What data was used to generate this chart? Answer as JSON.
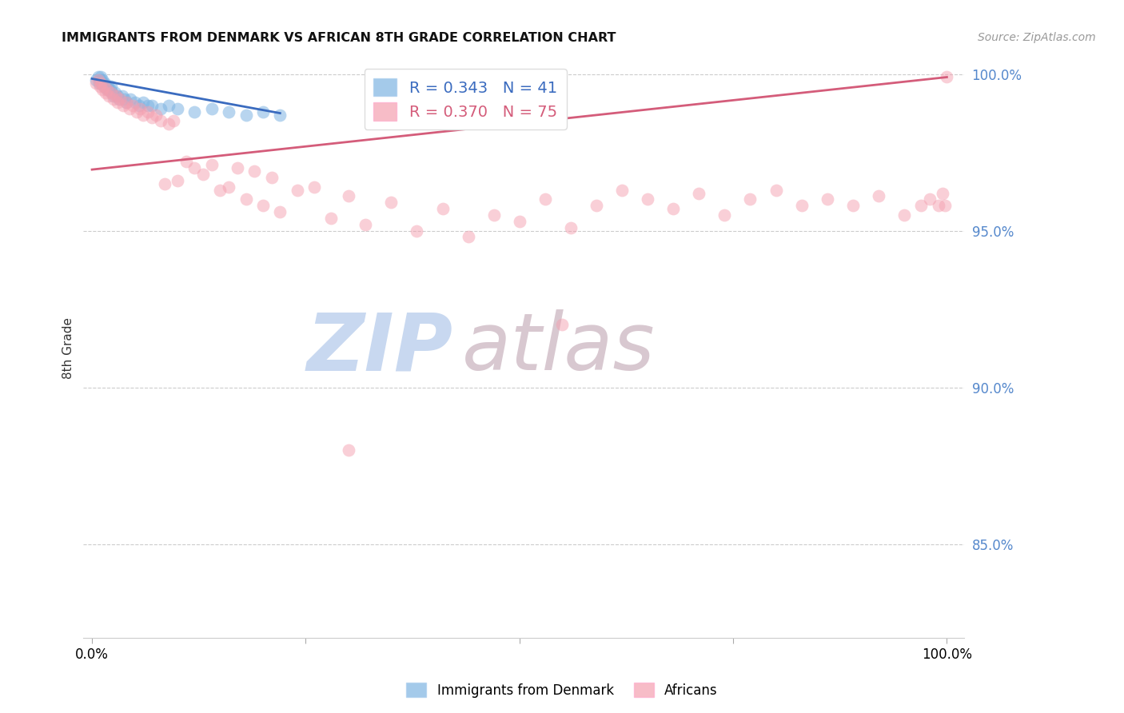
{
  "title": "IMMIGRANTS FROM DENMARK VS AFRICAN 8TH GRADE CORRELATION CHART",
  "source": "Source: ZipAtlas.com",
  "ylabel": "8th Grade",
  "xlim": [
    0.0,
    1.0
  ],
  "ylim": [
    0.82,
    1.005
  ],
  "yticks": [
    0.85,
    0.9,
    0.95,
    1.0
  ],
  "ytick_labels": [
    "85.0%",
    "90.0%",
    "95.0%",
    "100.0%"
  ],
  "xtick_positions": [
    0.0,
    0.25,
    0.5,
    0.75,
    1.0
  ],
  "xtick_labels": [
    "0.0%",
    "",
    "",
    "",
    "100.0%"
  ],
  "legend_r1": "R = 0.343",
  "legend_n1": "N = 41",
  "legend_r2": "R = 0.370",
  "legend_n2": "N = 75",
  "blue_color": "#7eb4e2",
  "pink_color": "#f4a0b0",
  "blue_line_color": "#3a6bbf",
  "pink_line_color": "#d45c7a",
  "watermark_zip": "ZIP",
  "watermark_atlas": "atlas",
  "watermark_color_zip": "#c8d8f0",
  "watermark_color_atlas": "#d8c8d0",
  "blue_scatter_x": [
    0.005,
    0.007,
    0.008,
    0.009,
    0.01,
    0.01,
    0.011,
    0.012,
    0.013,
    0.014,
    0.015,
    0.016,
    0.017,
    0.018,
    0.019,
    0.02,
    0.021,
    0.022,
    0.023,
    0.025,
    0.027,
    0.03,
    0.032,
    0.035,
    0.038,
    0.04,
    0.045,
    0.05,
    0.055,
    0.06,
    0.065,
    0.07,
    0.08,
    0.09,
    0.1,
    0.12,
    0.14,
    0.16,
    0.18,
    0.2,
    0.22
  ],
  "blue_scatter_y": [
    0.998,
    0.999,
    0.997,
    0.998,
    0.999,
    0.998,
    0.997,
    0.998,
    0.997,
    0.996,
    0.997,
    0.996,
    0.996,
    0.995,
    0.996,
    0.995,
    0.995,
    0.996,
    0.994,
    0.993,
    0.994,
    0.993,
    0.992,
    0.993,
    0.992,
    0.991,
    0.992,
    0.991,
    0.99,
    0.991,
    0.99,
    0.99,
    0.989,
    0.99,
    0.989,
    0.988,
    0.989,
    0.988,
    0.987,
    0.988,
    0.987
  ],
  "blue_line_x": [
    0.0,
    0.22
  ],
  "blue_line_y": [
    0.9985,
    0.9875
  ],
  "pink_scatter_x": [
    0.005,
    0.007,
    0.009,
    0.01,
    0.012,
    0.014,
    0.016,
    0.018,
    0.02,
    0.022,
    0.025,
    0.028,
    0.03,
    0.033,
    0.036,
    0.04,
    0.044,
    0.048,
    0.052,
    0.056,
    0.06,
    0.065,
    0.07,
    0.075,
    0.08,
    0.085,
    0.09,
    0.095,
    0.1,
    0.11,
    0.12,
    0.13,
    0.14,
    0.15,
    0.16,
    0.17,
    0.18,
    0.19,
    0.2,
    0.21,
    0.22,
    0.24,
    0.26,
    0.28,
    0.3,
    0.32,
    0.35,
    0.38,
    0.41,
    0.44,
    0.47,
    0.5,
    0.53,
    0.56,
    0.59,
    0.62,
    0.65,
    0.68,
    0.71,
    0.74,
    0.77,
    0.8,
    0.83,
    0.86,
    0.89,
    0.92,
    0.95,
    0.97,
    0.98,
    0.99,
    0.995,
    0.998,
    1.0,
    0.3,
    0.55
  ],
  "pink_scatter_y": [
    0.997,
    0.998,
    0.996,
    0.997,
    0.995,
    0.996,
    0.994,
    0.995,
    0.993,
    0.994,
    0.992,
    0.993,
    0.991,
    0.992,
    0.99,
    0.991,
    0.989,
    0.99,
    0.988,
    0.989,
    0.987,
    0.988,
    0.986,
    0.987,
    0.985,
    0.965,
    0.984,
    0.985,
    0.966,
    0.972,
    0.97,
    0.968,
    0.971,
    0.963,
    0.964,
    0.97,
    0.96,
    0.969,
    0.958,
    0.967,
    0.956,
    0.963,
    0.964,
    0.954,
    0.961,
    0.952,
    0.959,
    0.95,
    0.957,
    0.948,
    0.955,
    0.953,
    0.96,
    0.951,
    0.958,
    0.963,
    0.96,
    0.957,
    0.962,
    0.955,
    0.96,
    0.963,
    0.958,
    0.96,
    0.958,
    0.961,
    0.955,
    0.958,
    0.96,
    0.958,
    0.962,
    0.958,
    0.999,
    0.88,
    0.92
  ],
  "pink_line_x": [
    0.0,
    1.0
  ],
  "pink_line_y": [
    0.9695,
    0.999
  ]
}
